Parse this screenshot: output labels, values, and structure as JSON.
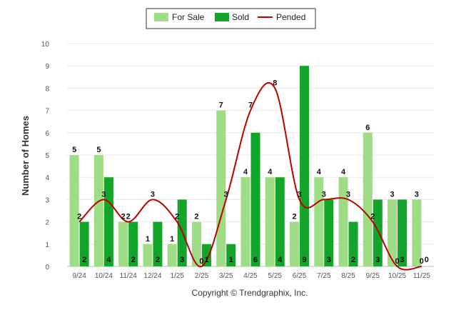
{
  "chart_data": {
    "type": "bar",
    "categories": [
      "9/24",
      "10/24",
      "11/24",
      "12/24",
      "1/25",
      "2/25",
      "3/25",
      "4/25",
      "5/25",
      "6/25",
      "7/25",
      "8/25",
      "9/25",
      "10/25",
      "11/25"
    ],
    "series": [
      {
        "name": "For Sale",
        "kind": "bar",
        "color": "#9edc86",
        "values": [
          5,
          5,
          2,
          1,
          1,
          2,
          7,
          4,
          4,
          2,
          4,
          4,
          6,
          3,
          3
        ]
      },
      {
        "name": "Sold",
        "kind": "bar",
        "color": "#12a52a",
        "values": [
          2,
          4,
          2,
          2,
          3,
          1,
          1,
          6,
          4,
          9,
          3,
          2,
          3,
          3,
          0
        ]
      },
      {
        "name": "Pended",
        "kind": "line",
        "color": "#c00000",
        "values": [
          2,
          3,
          2,
          3,
          2,
          0,
          3,
          7,
          8,
          3,
          3,
          3,
          2,
          0,
          0
        ]
      }
    ],
    "ylabel": "Number of Homes",
    "xlabel": "",
    "ylim": [
      0,
      10
    ],
    "yticks": [
      0,
      1,
      2,
      3,
      4,
      5,
      6,
      7,
      8,
      9,
      10
    ],
    "grid": true,
    "legend_position": "top-center"
  },
  "footer": "Copyright © Trendgraphix, Inc."
}
